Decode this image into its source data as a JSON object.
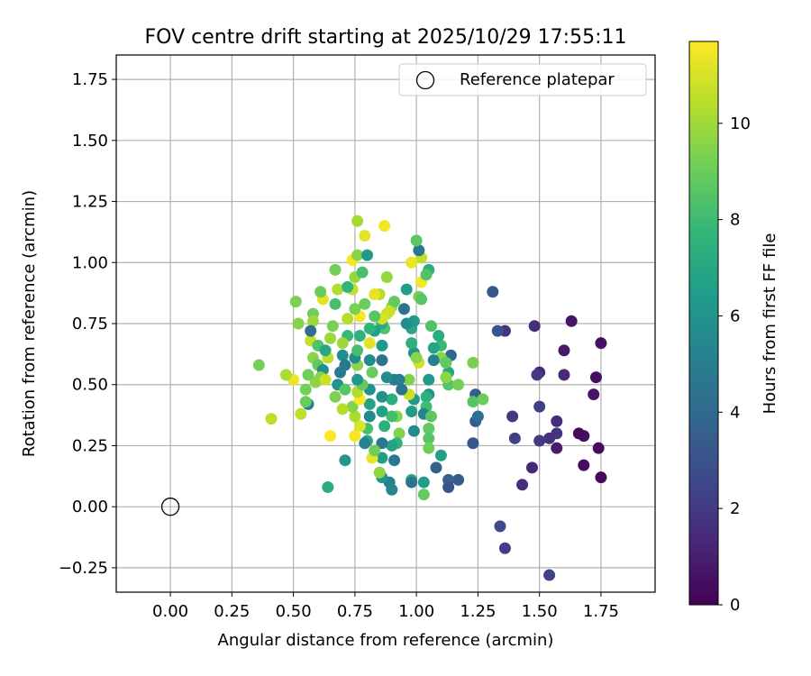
{
  "chart_data": {
    "type": "scatter",
    "title": "FOV centre drift starting at 2025/10/29 17:55:11",
    "xlabel": "Angular distance from reference (arcmin)",
    "ylabel": "Rotation from reference (arcmin)",
    "xlim": [
      -0.22,
      1.97
    ],
    "ylim": [
      -0.35,
      1.85
    ],
    "x_ticks": [
      0.0,
      0.25,
      0.5,
      0.75,
      1.0,
      1.25,
      1.5,
      1.75
    ],
    "x_tick_labels": [
      "0.00",
      "0.25",
      "0.50",
      "0.75",
      "1.00",
      "1.25",
      "1.50",
      "1.75"
    ],
    "y_ticks": [
      -0.25,
      0.0,
      0.25,
      0.5,
      0.75,
      1.0,
      1.25,
      1.5,
      1.75
    ],
    "y_tick_labels": [
      "−0.25",
      "0.00",
      "0.25",
      "0.50",
      "0.75",
      "1.00",
      "1.25",
      "1.50",
      "1.75"
    ],
    "grid": true,
    "legend": {
      "position": "top-right",
      "entries": [
        "Reference platepar"
      ]
    },
    "reference_point": {
      "x": 0.0,
      "y": 0.0,
      "name": "Reference platepar"
    },
    "colorbar": {
      "label": "Hours from first FF file",
      "colormap": "viridis",
      "range": [
        0,
        11.7
      ],
      "ticks": [
        0,
        2,
        4,
        6,
        8,
        10
      ],
      "tick_labels": [
        "0",
        "2",
        "4",
        "6",
        "8",
        "10"
      ]
    },
    "points": [
      [
        1.75,
        0.67,
        0.5
      ],
      [
        1.73,
        0.53,
        0.5
      ],
      [
        1.72,
        0.46,
        0.6
      ],
      [
        1.74,
        0.24,
        0.4
      ],
      [
        1.75,
        0.12,
        0.3
      ],
      [
        1.68,
        0.17,
        0.4
      ],
      [
        1.68,
        0.29,
        0.5
      ],
      [
        1.66,
        0.3,
        0.3
      ],
      [
        1.63,
        0.76,
        0.6
      ],
      [
        1.6,
        0.64,
        0.8
      ],
      [
        1.6,
        0.54,
        1.4
      ],
      [
        1.57,
        0.35,
        1.6
      ],
      [
        1.57,
        0.3,
        1.8
      ],
      [
        1.57,
        0.24,
        0.9
      ],
      [
        1.54,
        0.28,
        1.7
      ],
      [
        1.5,
        0.55,
        1.2
      ],
      [
        1.49,
        0.54,
        2.0
      ],
      [
        1.48,
        0.74,
        1.6
      ],
      [
        1.5,
        0.41,
        2.2
      ],
      [
        1.5,
        0.27,
        2.0
      ],
      [
        1.47,
        0.16,
        1.3
      ],
      [
        1.43,
        0.09,
        1.5
      ],
      [
        1.4,
        0.28,
        2.3
      ],
      [
        1.39,
        0.37,
        2.0
      ],
      [
        1.36,
        0.72,
        1.8
      ],
      [
        1.33,
        0.72,
        3.0
      ],
      [
        1.31,
        0.88,
        3.2
      ],
      [
        1.54,
        -0.28,
        2.4
      ],
      [
        1.36,
        -0.17,
        2.2
      ],
      [
        1.34,
        -0.08,
        2.6
      ],
      [
        1.23,
        0.26,
        3.1
      ],
      [
        1.24,
        0.35,
        3.4
      ],
      [
        1.24,
        0.46,
        3.5
      ],
      [
        1.25,
        0.37,
        4.2
      ],
      [
        1.17,
        0.11,
        3.4
      ],
      [
        1.13,
        0.11,
        3.6
      ],
      [
        1.13,
        0.08,
        3.0
      ],
      [
        1.08,
        0.16,
        3.7
      ],
      [
        1.1,
        0.21,
        6.6
      ],
      [
        1.14,
        0.62,
        3.9
      ],
      [
        1.13,
        0.55,
        7.0
      ],
      [
        1.13,
        0.5,
        8.5
      ],
      [
        1.17,
        0.5,
        9.2
      ],
      [
        1.23,
        0.59,
        9.3
      ],
      [
        1.27,
        0.44,
        9.0
      ],
      [
        1.23,
        0.43,
        8.6
      ],
      [
        1.12,
        0.53,
        9.7
      ],
      [
        1.1,
        0.61,
        9.6
      ],
      [
        1.12,
        0.59,
        8.8
      ],
      [
        1.1,
        0.66,
        7.9
      ],
      [
        1.09,
        0.7,
        7.2
      ],
      [
        1.06,
        0.74,
        8.5
      ],
      [
        1.07,
        0.65,
        6.8
      ],
      [
        1.07,
        0.6,
        5.1
      ],
      [
        1.05,
        0.52,
        6.2
      ],
      [
        1.05,
        0.46,
        6.0
      ],
      [
        1.04,
        0.45,
        7.4
      ],
      [
        1.04,
        0.41,
        8.1
      ],
      [
        1.03,
        0.38,
        5.3
      ],
      [
        1.05,
        0.32,
        8.8
      ],
      [
        1.05,
        0.28,
        8.6
      ],
      [
        1.05,
        0.24,
        9.1
      ],
      [
        1.06,
        0.37,
        8.7
      ],
      [
        1.03,
        0.1,
        6.5
      ],
      [
        1.03,
        0.05,
        8.9
      ],
      [
        0.98,
        0.11,
        7.2
      ],
      [
        0.98,
        0.1,
        4.5
      ],
      [
        0.99,
        0.31,
        5.7
      ],
      [
        0.98,
        0.39,
        6.4
      ],
      [
        0.99,
        0.44,
        6.2
      ],
      [
        0.97,
        0.46,
        10.8
      ],
      [
        0.97,
        0.52,
        9.4
      ],
      [
        0.99,
        0.63,
        6.0
      ],
      [
        1.01,
        0.59,
        10.9
      ],
      [
        1.0,
        0.61,
        9.6
      ],
      [
        0.98,
        0.67,
        7.4
      ],
      [
        0.98,
        0.73,
        7.0
      ],
      [
        0.99,
        0.76,
        6.3
      ],
      [
        0.96,
        0.75,
        5.8
      ],
      [
        0.95,
        0.81,
        4.5
      ],
      [
        0.96,
        0.89,
        6.5
      ],
      [
        1.01,
        0.86,
        9.3
      ],
      [
        1.02,
        0.85,
        8.6
      ],
      [
        1.02,
        0.92,
        11.5
      ],
      [
        1.05,
        0.97,
        7.3
      ],
      [
        1.04,
        0.95,
        8.5
      ],
      [
        1.02,
        1.02,
        10.6
      ],
      [
        1.01,
        1.05,
        4.7
      ],
      [
        1.0,
        1.09,
        8.7
      ],
      [
        0.98,
        1.0,
        11.4
      ],
      [
        0.91,
        0.52,
        4.8
      ],
      [
        0.93,
        0.52,
        5.0
      ],
      [
        0.94,
        0.48,
        4.5
      ],
      [
        0.9,
        0.44,
        7.3
      ],
      [
        0.92,
        0.37,
        9.5
      ],
      [
        0.9,
        0.37,
        8.1
      ],
      [
        0.93,
        0.3,
        9.4
      ],
      [
        0.92,
        0.26,
        7.5
      ],
      [
        0.9,
        0.25,
        6.8
      ],
      [
        0.91,
        0.19,
        4.7
      ],
      [
        0.89,
        0.1,
        5.2
      ],
      [
        0.9,
        0.07,
        5.4
      ],
      [
        0.86,
        0.12,
        6.1
      ],
      [
        0.85,
        0.14,
        9.7
      ],
      [
        0.86,
        0.2,
        6.4
      ],
      [
        0.86,
        0.26,
        4.6
      ],
      [
        0.87,
        0.33,
        7.4
      ],
      [
        0.86,
        0.39,
        6.6
      ],
      [
        0.86,
        0.45,
        6.0
      ],
      [
        0.88,
        0.53,
        5.7
      ],
      [
        0.86,
        0.6,
        4.5
      ],
      [
        0.86,
        0.66,
        6.3
      ],
      [
        0.87,
        0.73,
        8.4
      ],
      [
        0.86,
        0.75,
        7.2
      ],
      [
        0.88,
        0.79,
        10.5
      ],
      [
        0.9,
        0.82,
        9.9
      ],
      [
        0.91,
        0.84,
        8.8
      ],
      [
        0.89,
        0.8,
        10.8
      ],
      [
        0.88,
        0.94,
        9.8
      ],
      [
        0.85,
        0.87,
        10.4
      ],
      [
        0.86,
        0.77,
        11.0
      ],
      [
        0.83,
        0.87,
        11.3
      ],
      [
        0.83,
        0.78,
        8.6
      ],
      [
        0.83,
        0.72,
        6.7
      ],
      [
        0.81,
        0.73,
        7.6
      ],
      [
        0.81,
        0.67,
        11.2
      ],
      [
        0.81,
        0.6,
        5.6
      ],
      [
        0.82,
        0.55,
        9.0
      ],
      [
        0.81,
        0.48,
        5.9
      ],
      [
        0.81,
        0.42,
        6.8
      ],
      [
        0.81,
        0.37,
        5.5
      ],
      [
        0.8,
        0.32,
        8.2
      ],
      [
        0.8,
        0.27,
        7.1
      ],
      [
        0.79,
        0.26,
        5.2
      ],
      [
        0.82,
        0.2,
        11.3
      ],
      [
        0.83,
        0.23,
        9.1
      ],
      [
        0.77,
        0.33,
        11.1
      ],
      [
        0.75,
        0.29,
        11.6
      ],
      [
        0.75,
        0.37,
        10.2
      ],
      [
        0.74,
        0.41,
        9.5
      ],
      [
        0.77,
        0.44,
        11.7
      ],
      [
        0.76,
        0.47,
        10.3
      ],
      [
        0.78,
        0.5,
        8.9
      ],
      [
        0.76,
        0.52,
        6.2
      ],
      [
        0.76,
        0.58,
        9.6
      ],
      [
        0.75,
        0.61,
        5.7
      ],
      [
        0.76,
        0.64,
        8.2
      ],
      [
        0.77,
        0.7,
        7.5
      ],
      [
        0.77,
        0.78,
        11.5
      ],
      [
        0.75,
        0.81,
        9.3
      ],
      [
        0.74,
        0.89,
        10.6
      ],
      [
        0.75,
        0.94,
        9.8
      ],
      [
        0.74,
        1.01,
        11.6
      ],
      [
        0.76,
        1.03,
        9.6
      ],
      [
        0.78,
        0.96,
        8.2
      ],
      [
        0.76,
        1.17,
        10.1
      ],
      [
        0.79,
        1.11,
        11.2
      ],
      [
        0.8,
        1.03,
        6.3
      ],
      [
        0.87,
        1.15,
        11.5
      ],
      [
        0.79,
        0.83,
        9.0
      ],
      [
        0.72,
        0.77,
        10.4
      ],
      [
        0.72,
        0.7,
        7.9
      ],
      [
        0.7,
        0.67,
        10.0
      ],
      [
        0.7,
        0.62,
        5.8
      ],
      [
        0.71,
        0.58,
        4.7
      ],
      [
        0.69,
        0.55,
        4.9
      ],
      [
        0.68,
        0.5,
        6.0
      ],
      [
        0.71,
        0.48,
        8.6
      ],
      [
        0.67,
        0.45,
        9.4
      ],
      [
        0.7,
        0.4,
        10.4
      ],
      [
        0.71,
        0.19,
        6.2
      ],
      [
        0.65,
        0.29,
        11.7
      ],
      [
        0.64,
        0.08,
        7.3
      ],
      [
        0.64,
        0.61,
        10.5
      ],
      [
        0.65,
        0.69,
        9.9
      ],
      [
        0.66,
        0.74,
        9.3
      ],
      [
        0.67,
        0.83,
        8.2
      ],
      [
        0.67,
        0.97,
        9.2
      ],
      [
        0.68,
        0.89,
        10.3
      ],
      [
        0.72,
        0.9,
        7.6
      ],
      [
        0.62,
        0.85,
        11.2
      ],
      [
        0.61,
        0.88,
        9.0
      ],
      [
        0.58,
        0.79,
        9.1
      ],
      [
        0.58,
        0.76,
        10.0
      ],
      [
        0.58,
        0.61,
        9.6
      ],
      [
        0.6,
        0.58,
        8.8
      ],
      [
        0.59,
        0.51,
        9.7
      ],
      [
        0.56,
        0.54,
        9.1
      ],
      [
        0.55,
        0.48,
        9.2
      ],
      [
        0.56,
        0.42,
        5.3
      ],
      [
        0.55,
        0.43,
        9.0
      ],
      [
        0.53,
        0.38,
        10.6
      ],
      [
        0.52,
        0.75,
        9.5
      ],
      [
        0.51,
        0.84,
        9.3
      ],
      [
        0.5,
        0.52,
        11.4
      ],
      [
        0.47,
        0.54,
        10.2
      ],
      [
        0.41,
        0.36,
        10.5
      ],
      [
        0.36,
        0.58,
        9.2
      ],
      [
        0.57,
        0.68,
        10.7
      ],
      [
        0.57,
        0.72,
        4.3
      ],
      [
        0.6,
        0.66,
        8.4
      ],
      [
        0.63,
        0.64,
        7.0
      ],
      [
        0.62,
        0.56,
        5.8
      ],
      [
        0.61,
        0.53,
        9.6
      ],
      [
        0.63,
        0.52,
        10.8
      ]
    ]
  }
}
